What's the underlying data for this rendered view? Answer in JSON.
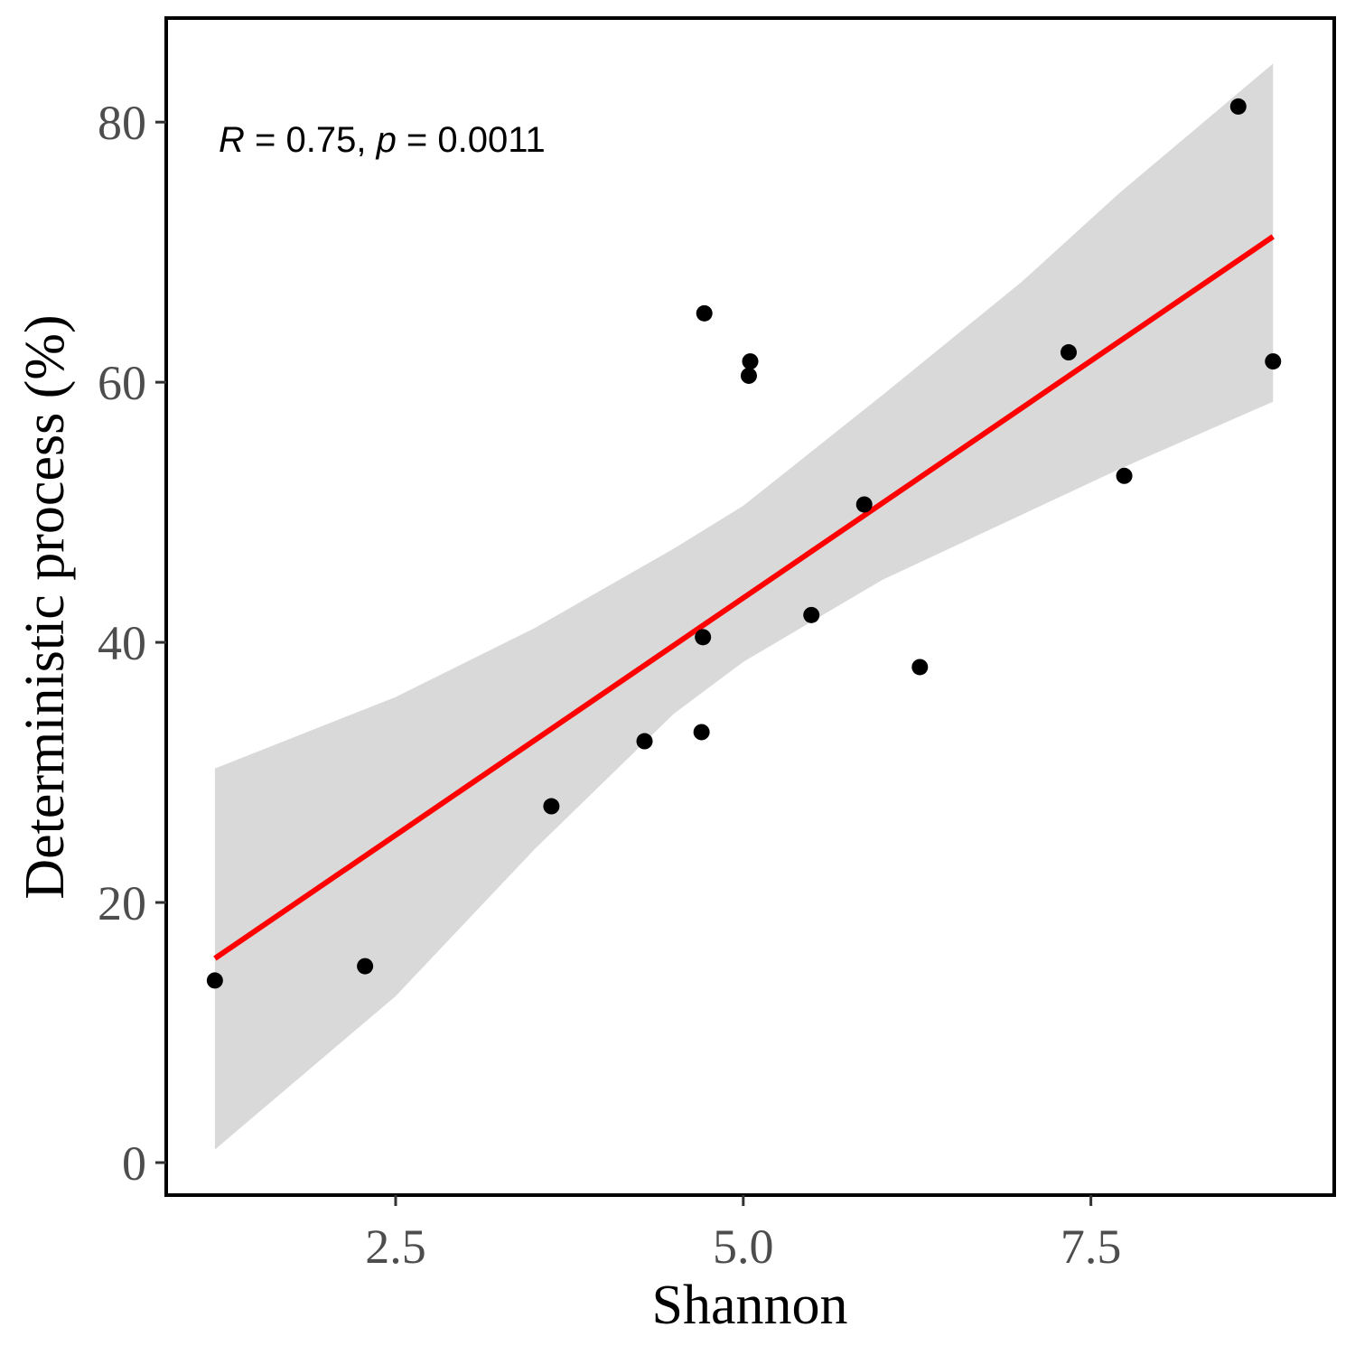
{
  "chart_data": {
    "type": "scatter",
    "xlabel": "Shannon",
    "ylabel": "Deterministic process (%)",
    "xlim": [
      0.85,
      9.25
    ],
    "ylim": [
      -2.5,
      88
    ],
    "x_ticks": [
      2.5,
      5.0,
      7.5
    ],
    "x_tick_labels": [
      "2.5",
      "5.0",
      "7.5"
    ],
    "y_ticks": [
      0,
      20,
      40,
      60,
      80
    ],
    "y_tick_labels": [
      "0",
      "20",
      "40",
      "60",
      "80"
    ],
    "grid": false,
    "annotation": {
      "r_label": "R",
      "r_text": " = 0.75, ",
      "p_label": "p",
      "p_text": " = 0.0011"
    },
    "points": [
      {
        "x": 1.2,
        "y": 14.0
      },
      {
        "x": 2.28,
        "y": 15.1
      },
      {
        "x": 3.62,
        "y": 27.4
      },
      {
        "x": 4.29,
        "y": 32.4
      },
      {
        "x": 4.7,
        "y": 33.1
      },
      {
        "x": 4.71,
        "y": 40.4
      },
      {
        "x": 4.72,
        "y": 65.3
      },
      {
        "x": 5.04,
        "y": 60.5
      },
      {
        "x": 5.05,
        "y": 61.6
      },
      {
        "x": 5.49,
        "y": 42.1
      },
      {
        "x": 5.87,
        "y": 50.6
      },
      {
        "x": 6.27,
        "y": 38.1
      },
      {
        "x": 7.34,
        "y": 62.3
      },
      {
        "x": 7.74,
        "y": 52.8
      },
      {
        "x": 8.56,
        "y": 81.2
      },
      {
        "x": 8.81,
        "y": 61.6
      }
    ],
    "fit_line": {
      "x": [
        1.2,
        8.81
      ],
      "y": [
        15.7,
        71.2
      ],
      "color": "#ff0000"
    },
    "confidence_band": {
      "x": [
        1.2,
        2.5,
        3.5,
        4.5,
        5.0,
        6.0,
        7.0,
        7.7,
        8.81
      ],
      "upper": [
        30.3,
        35.8,
        41.1,
        47.2,
        50.5,
        59.0,
        67.7,
        74.5,
        84.5
      ],
      "lower": [
        1.0,
        12.8,
        24.1,
        34.5,
        38.5,
        44.8,
        49.8,
        53.3,
        58.5
      ],
      "color": "#d9d9d9"
    },
    "point_color": "#000000"
  }
}
